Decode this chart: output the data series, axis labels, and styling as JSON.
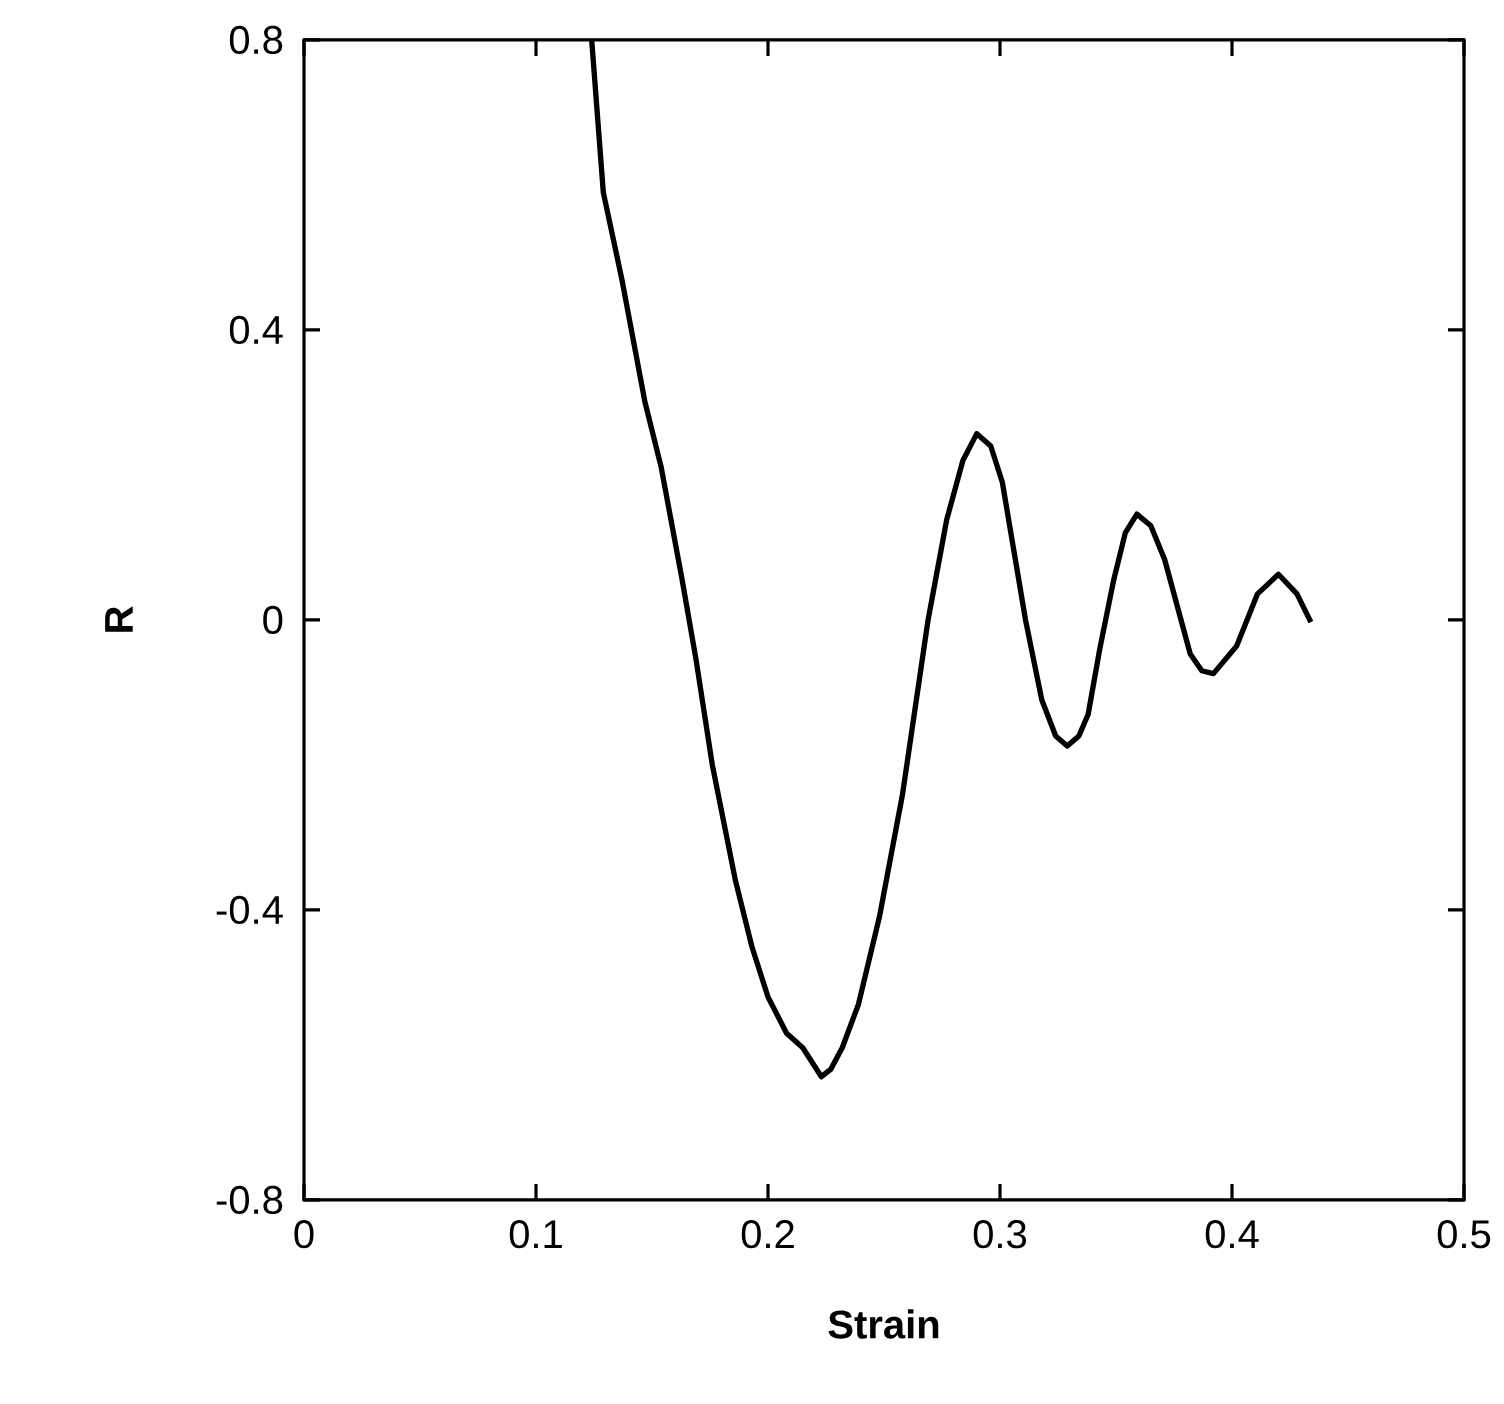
{
  "chart_data": {
    "type": "line",
    "xlabel": "Strain",
    "ylabel": "R",
    "xlim": [
      0,
      0.5
    ],
    "ylim": [
      -0.8,
      0.8
    ],
    "xticks": [
      0,
      0.1,
      0.2,
      0.3,
      0.4,
      0.5
    ],
    "yticks": [
      -0.8,
      -0.4,
      0,
      0.4,
      0.8
    ],
    "grid": false,
    "marker": "none",
    "line_style": "solid",
    "series": [
      {
        "color": "#000000",
        "x": [
          0.124,
          0.129,
          0.137,
          0.147,
          0.154,
          0.163,
          0.169,
          0.176,
          0.186,
          0.193,
          0.2,
          0.208,
          0.215,
          0.223,
          0.227,
          0.232,
          0.239,
          0.248,
          0.258,
          0.269,
          0.277,
          0.284,
          0.29,
          0.296,
          0.301,
          0.311,
          0.318,
          0.324,
          0.329,
          0.334,
          0.338,
          0.343,
          0.349,
          0.354,
          0.359,
          0.365,
          0.371,
          0.382,
          0.387,
          0.392,
          0.402,
          0.411,
          0.42,
          0.428,
          0.434
        ],
        "values": [
          0.8,
          0.59,
          0.47,
          0.3,
          0.21,
          0.055,
          -0.055,
          -0.2,
          -0.36,
          -0.45,
          -0.52,
          -0.57,
          -0.59,
          -0.63,
          -0.62,
          -0.59,
          -0.53,
          -0.41,
          -0.24,
          0.0,
          0.138,
          0.22,
          0.257,
          0.24,
          0.19,
          0.0,
          -0.11,
          -0.16,
          -0.174,
          -0.16,
          -0.13,
          -0.04,
          0.055,
          0.12,
          0.146,
          0.13,
          0.083,
          -0.047,
          -0.07,
          -0.074,
          -0.036,
          0.036,
          0.063,
          0.036,
          -0.003
        ]
      }
    ]
  }
}
